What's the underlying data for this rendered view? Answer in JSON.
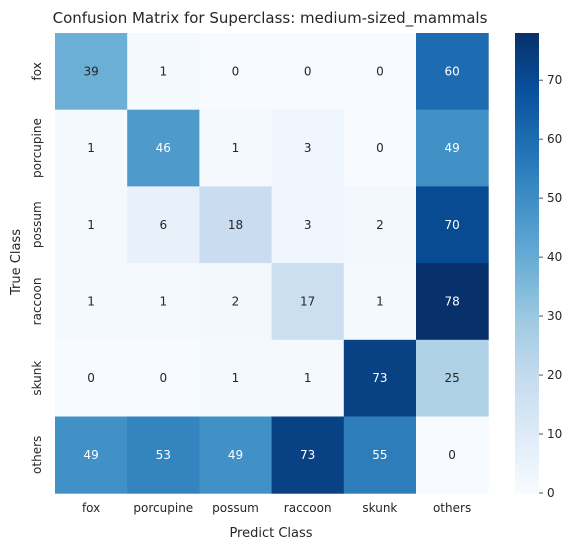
{
  "chart_data": {
    "type": "heatmap",
    "title": "Confusion Matrix for Superclass: medium-sized_mammals",
    "xlabel": "Predict Class",
    "ylabel": "True Class",
    "x_categories": [
      "fox",
      "porcupine",
      "possum",
      "raccoon",
      "skunk",
      "others"
    ],
    "y_categories": [
      "fox",
      "porcupine",
      "possum",
      "raccoon",
      "skunk",
      "others"
    ],
    "values": [
      [
        39,
        1,
        0,
        0,
        0,
        60
      ],
      [
        1,
        46,
        1,
        3,
        0,
        49
      ],
      [
        1,
        6,
        18,
        3,
        2,
        70
      ],
      [
        1,
        1,
        2,
        17,
        1,
        78
      ],
      [
        0,
        0,
        1,
        1,
        73,
        25
      ],
      [
        49,
        53,
        49,
        73,
        55,
        0
      ]
    ],
    "colorbar": {
      "colormap": "Blues",
      "range": [
        0,
        78
      ],
      "ticks": [
        0,
        10,
        20,
        30,
        40,
        50,
        60,
        70
      ]
    }
  }
}
